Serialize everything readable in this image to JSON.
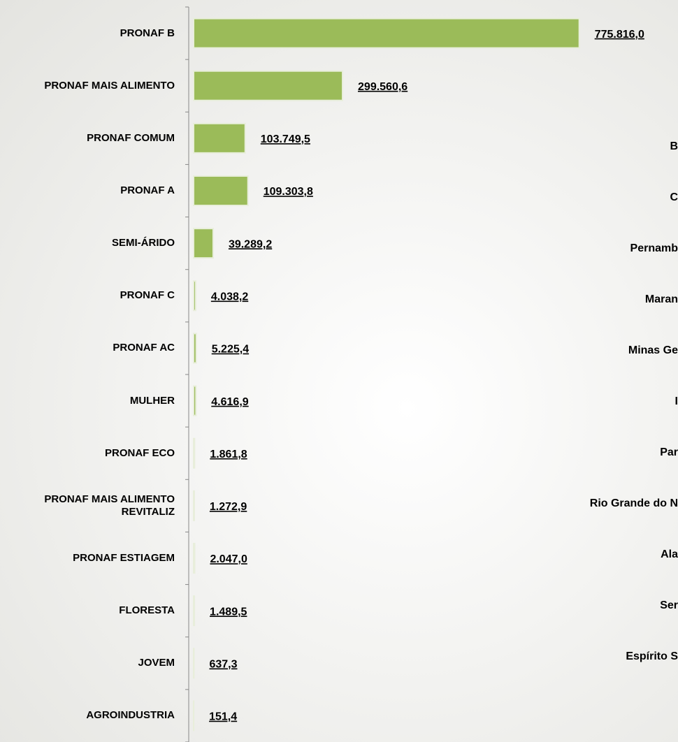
{
  "chart_data": {
    "type": "hbar",
    "categories": [
      "PRONAF B",
      "PRONAF MAIS ALIMENTO",
      "PRONAF COMUM",
      "PRONAF A",
      "SEMI-ÁRIDO",
      "PRONAF C",
      "PRONAF AC",
      "MULHER",
      "PRONAF ECO",
      "PRONAF MAIS ALIMENTO REVITALIZ",
      "PRONAF ESTIAGEM",
      "FLORESTA",
      "JOVEM",
      "AGROINDUSTRIA"
    ],
    "values": [
      775816.0,
      299560.6,
      103749.5,
      109303.8,
      39289.2,
      4038.2,
      5225.4,
      4616.9,
      1861.8,
      1272.9,
      2047.0,
      1489.5,
      637.3,
      151.4
    ],
    "value_labels": [
      "775.816,0",
      "299.560,6",
      "103.749,5",
      "109.303,8",
      "39.289,2",
      "4.038,2",
      "5.225,4",
      "4.616,9",
      "1.861,8",
      "1.272,9",
      "2.047,0",
      "1.489,5",
      "637,3",
      "151,4"
    ],
    "color": "#9bbb59",
    "xlim": [
      0,
      900000
    ]
  },
  "side_labels": [
    "B",
    "C",
    "Pernamb",
    "Maran",
    "Minas Ge",
    "I",
    "Par",
    "Rio Grande do N",
    "Ala",
    "Ser",
    "Espírito S"
  ]
}
